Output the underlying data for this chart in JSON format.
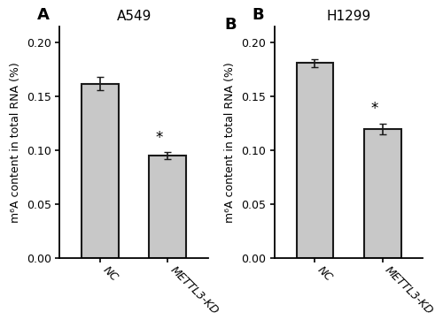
{
  "panels": [
    {
      "label": "A",
      "title": "A549",
      "categories": [
        "NC",
        "METTL3-KD"
      ],
      "values": [
        0.162,
        0.095
      ],
      "errors": [
        0.006,
        0.003
      ],
      "sig_bar": [
        false,
        true
      ],
      "ylim": [
        0.0,
        0.215
      ],
      "yticks": [
        0.0,
        0.05,
        0.1,
        0.15,
        0.2
      ],
      "ylabel": "m⁶A content in total RNA (%)"
    },
    {
      "label": "B",
      "title": "H1299",
      "categories": [
        "NC",
        "METTL3-KD"
      ],
      "values": [
        0.181,
        0.12
      ],
      "errors": [
        0.004,
        0.005
      ],
      "sig_bar": [
        false,
        true
      ],
      "ylim": [
        0.0,
        0.215
      ],
      "yticks": [
        0.0,
        0.05,
        0.1,
        0.15,
        0.2
      ],
      "ylabel": "m⁶A content in total RNA (%)"
    }
  ],
  "bar_color": "#c8c8c8",
  "bar_edgecolor": "#1a1a1a",
  "bar_linewidth": 1.5,
  "bar_width": 0.55,
  "errorbar_color": "#1a1a1a",
  "errorbar_capsize": 3,
  "errorbar_linewidth": 1.2,
  "sig_symbol": "*",
  "panel_label_fontsize": 13,
  "title_fontsize": 11,
  "ylabel_fontsize": 9,
  "tick_fontsize": 9,
  "sig_fontsize": 12,
  "figure_width": 5.0,
  "figure_height": 3.7,
  "dpi": 100
}
